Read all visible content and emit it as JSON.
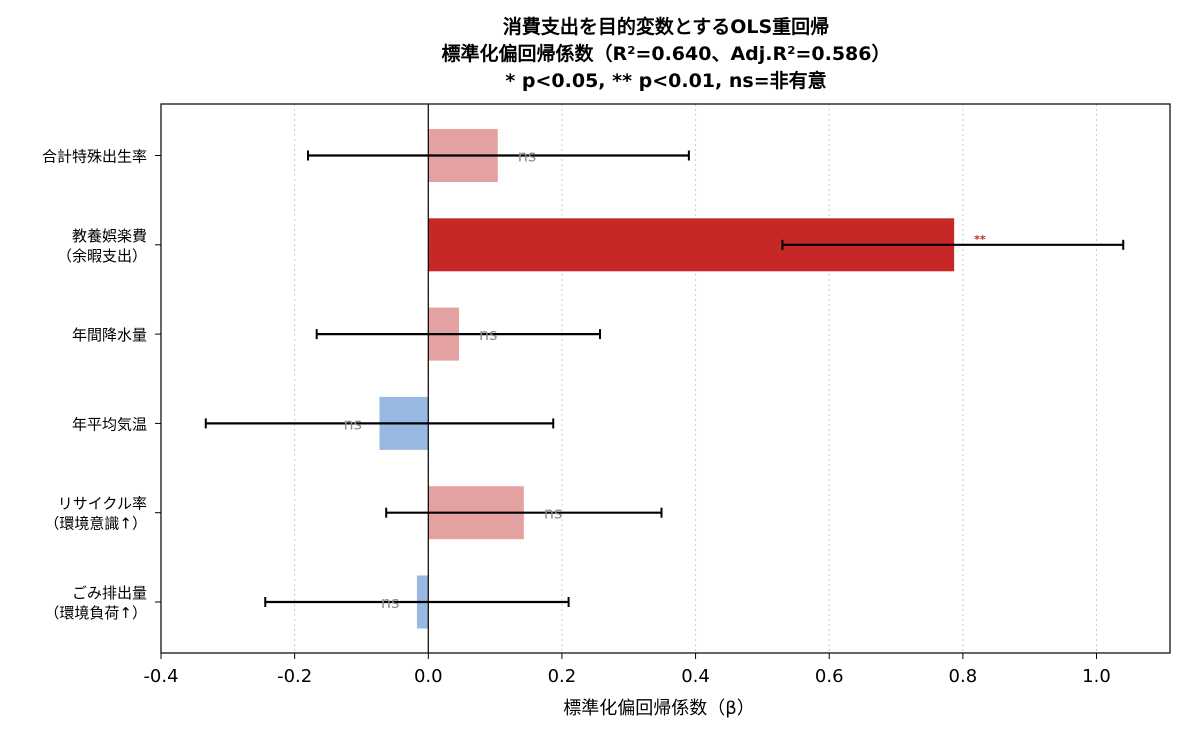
{
  "chart_data": {
    "type": "bar",
    "orientation": "horizontal",
    "title_lines": [
      "消費支出を目的変数とするOLS重回帰",
      "標準化偏回帰係数（R²=0.640、Adj.R²=0.586）",
      "* p<0.05, ** p<0.01, ns=非有意"
    ],
    "xlabel": "標準化偏回帰係数（β）",
    "xlim": [
      -0.4,
      1.11
    ],
    "xticks": [
      "-0.4",
      "-0.2",
      "0.0",
      "0.2",
      "0.4",
      "0.6",
      "0.8",
      "1.0"
    ],
    "xtick_values": [
      -0.4,
      -0.2,
      0.0,
      0.2,
      0.4,
      0.6,
      0.8,
      1.0
    ],
    "grid": "x-dotted",
    "colors": {
      "positive_ns": "#e4a1a1",
      "positive_sig": "#c62828",
      "negative_ns": "#97b9e2",
      "errorbar": "#000000",
      "sig_ns_text": "#8a8a8a",
      "sig_text": "#c62828"
    },
    "categories": [
      {
        "lines": [
          "合計特殊出生率"
        ],
        "beta": 0.104,
        "ci": [
          -0.18,
          0.39
        ],
        "sig": "ns"
      },
      {
        "lines": [
          "教養娯楽費",
          "（余暇支出）"
        ],
        "beta": 0.787,
        "ci": [
          0.53,
          1.04
        ],
        "sig": "**"
      },
      {
        "lines": [
          "年間降水量"
        ],
        "beta": 0.046,
        "ci": [
          -0.167,
          0.257
        ],
        "sig": "ns"
      },
      {
        "lines": [
          "年平均気温"
        ],
        "beta": -0.073,
        "ci": [
          -0.333,
          0.187
        ],
        "sig": "ns"
      },
      {
        "lines": [
          "リサイクル率",
          "（環境意識↑）"
        ],
        "beta": 0.143,
        "ci": [
          -0.063,
          0.349
        ],
        "sig": "ns"
      },
      {
        "lines": [
          "ごみ排出量",
          "（環境負荷↑）"
        ],
        "beta": -0.017,
        "ci": [
          -0.244,
          0.21
        ],
        "sig": "ns"
      }
    ]
  }
}
